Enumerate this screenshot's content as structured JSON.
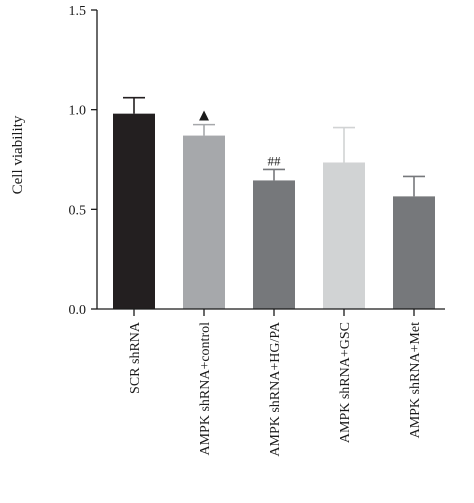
{
  "chart_data": {
    "type": "bar",
    "ylabel": "Cell viability",
    "xlabel": "",
    "ylim": [
      0,
      1.5
    ],
    "y_ticks": [
      "0.0",
      "0.5",
      "1.0",
      "1.5"
    ],
    "categories": [
      "SCR shRNA",
      "AMPK shRNA+control",
      "AMPK shRNA+HG/PA",
      "AMPK shRNA+GSC",
      "AMPK shRNA+Met"
    ],
    "values": [
      0.98,
      0.87,
      0.645,
      0.735,
      0.565
    ],
    "error_upper": [
      0.08,
      0.055,
      0.055,
      0.175,
      0.1
    ],
    "colors": [
      "#231f20",
      "#a6a8ab",
      "#76787b",
      "#d1d3d4",
      "#76787b"
    ],
    "annotations": [
      {
        "category_index": 1,
        "text": "▲"
      },
      {
        "category_index": 2,
        "text": "##"
      }
    ],
    "grid": false,
    "legend": "none"
  }
}
